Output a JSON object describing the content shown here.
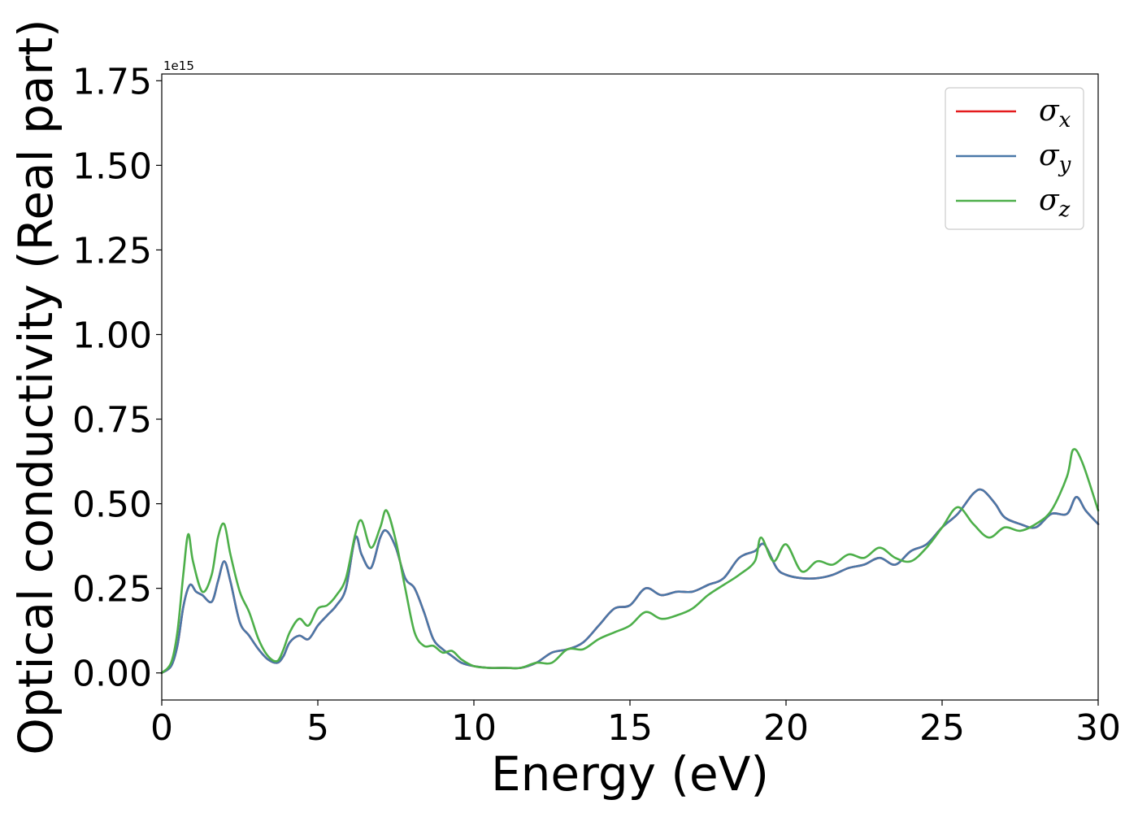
{
  "chart_data": {
    "type": "line",
    "xlabel": "Energy (eV)",
    "ylabel": "Optical conductivity (Real part)",
    "y_offset_text": "1e15",
    "xlim": [
      0,
      30
    ],
    "ylim": [
      -0.08,
      1.77
    ],
    "xticks": [
      0,
      5,
      10,
      15,
      20,
      25,
      30
    ],
    "xtick_labels": [
      "0",
      "5",
      "10",
      "15",
      "20",
      "25",
      "30"
    ],
    "yticks": [
      0.0,
      0.25,
      0.5,
      0.75,
      1.0,
      1.25,
      1.5,
      1.75
    ],
    "ytick_labels": [
      "0.00",
      "0.25",
      "0.50",
      "0.75",
      "1.00",
      "1.25",
      "1.50",
      "1.75"
    ],
    "grid": false,
    "legend_position": "top-right",
    "series": [
      {
        "name": "σx",
        "symbol": "σ",
        "subscript": "x",
        "color": "#e41a1c",
        "x": [
          0,
          0.3,
          0.5,
          0.7,
          0.9,
          1.1,
          1.3,
          1.6,
          1.8,
          2.0,
          2.2,
          2.5,
          2.8,
          3.1,
          3.4,
          3.7,
          3.9,
          4.1,
          4.4,
          4.7,
          5.0,
          5.3,
          5.6,
          5.9,
          6.2,
          6.4,
          6.7,
          7.0,
          7.2,
          7.5,
          7.8,
          8.1,
          8.4,
          8.7,
          9.0,
          9.3,
          9.6,
          10.0,
          10.5,
          11.0,
          11.5,
          12.0,
          12.5,
          13.0,
          13.5,
          14.0,
          14.5,
          15.0,
          15.5,
          16.0,
          16.5,
          17.0,
          17.5,
          18.0,
          18.5,
          19.0,
          19.3,
          19.7,
          20.0,
          20.5,
          21.0,
          21.5,
          22.0,
          22.5,
          23.0,
          23.5,
          24.0,
          24.5,
          25.0,
          25.5,
          26.0,
          26.3,
          26.7,
          27.0,
          27.5,
          28.0,
          28.5,
          29.0,
          29.3,
          29.6,
          30.0
        ],
        "y": [
          0.0,
          0.02,
          0.08,
          0.2,
          0.26,
          0.24,
          0.23,
          0.21,
          0.27,
          0.33,
          0.27,
          0.15,
          0.11,
          0.07,
          0.04,
          0.03,
          0.05,
          0.09,
          0.11,
          0.1,
          0.14,
          0.17,
          0.2,
          0.25,
          0.4,
          0.35,
          0.31,
          0.4,
          0.42,
          0.37,
          0.28,
          0.25,
          0.18,
          0.1,
          0.07,
          0.05,
          0.03,
          0.02,
          0.015,
          0.015,
          0.015,
          0.03,
          0.06,
          0.07,
          0.09,
          0.14,
          0.19,
          0.2,
          0.25,
          0.23,
          0.24,
          0.24,
          0.26,
          0.28,
          0.34,
          0.36,
          0.38,
          0.31,
          0.29,
          0.28,
          0.28,
          0.29,
          0.31,
          0.32,
          0.34,
          0.32,
          0.36,
          0.38,
          0.43,
          0.47,
          0.53,
          0.54,
          0.5,
          0.46,
          0.44,
          0.43,
          0.47,
          0.47,
          0.52,
          0.48,
          0.44
        ]
      },
      {
        "name": "σy",
        "symbol": "σ",
        "subscript": "y",
        "color": "#4a78a8",
        "x": [
          0,
          0.3,
          0.5,
          0.7,
          0.9,
          1.1,
          1.3,
          1.6,
          1.8,
          2.0,
          2.2,
          2.5,
          2.8,
          3.1,
          3.4,
          3.7,
          3.9,
          4.1,
          4.4,
          4.7,
          5.0,
          5.3,
          5.6,
          5.9,
          6.2,
          6.4,
          6.7,
          7.0,
          7.2,
          7.5,
          7.8,
          8.1,
          8.4,
          8.7,
          9.0,
          9.3,
          9.6,
          10.0,
          10.5,
          11.0,
          11.5,
          12.0,
          12.5,
          13.0,
          13.5,
          14.0,
          14.5,
          15.0,
          15.5,
          16.0,
          16.5,
          17.0,
          17.5,
          18.0,
          18.5,
          19.0,
          19.3,
          19.7,
          20.0,
          20.5,
          21.0,
          21.5,
          22.0,
          22.5,
          23.0,
          23.5,
          24.0,
          24.5,
          25.0,
          25.5,
          26.0,
          26.3,
          26.7,
          27.0,
          27.5,
          28.0,
          28.5,
          29.0,
          29.3,
          29.6,
          30.0
        ],
        "y": [
          0.0,
          0.02,
          0.08,
          0.2,
          0.26,
          0.24,
          0.23,
          0.21,
          0.27,
          0.33,
          0.27,
          0.15,
          0.11,
          0.07,
          0.04,
          0.03,
          0.05,
          0.09,
          0.11,
          0.1,
          0.14,
          0.17,
          0.2,
          0.25,
          0.4,
          0.35,
          0.31,
          0.4,
          0.42,
          0.37,
          0.28,
          0.25,
          0.18,
          0.1,
          0.07,
          0.05,
          0.03,
          0.02,
          0.015,
          0.015,
          0.015,
          0.03,
          0.06,
          0.07,
          0.09,
          0.14,
          0.19,
          0.2,
          0.25,
          0.23,
          0.24,
          0.24,
          0.26,
          0.28,
          0.34,
          0.36,
          0.38,
          0.31,
          0.29,
          0.28,
          0.28,
          0.29,
          0.31,
          0.32,
          0.34,
          0.32,
          0.36,
          0.38,
          0.43,
          0.47,
          0.53,
          0.54,
          0.5,
          0.46,
          0.44,
          0.43,
          0.47,
          0.47,
          0.52,
          0.48,
          0.44
        ]
      },
      {
        "name": "σz",
        "symbol": "σ",
        "subscript": "z",
        "color": "#4daf4a",
        "x": [
          0,
          0.3,
          0.5,
          0.7,
          0.85,
          1.0,
          1.3,
          1.6,
          1.8,
          2.0,
          2.2,
          2.5,
          2.8,
          3.1,
          3.4,
          3.7,
          3.9,
          4.1,
          4.4,
          4.7,
          5.0,
          5.3,
          5.6,
          5.9,
          6.2,
          6.4,
          6.7,
          7.0,
          7.2,
          7.5,
          7.8,
          8.1,
          8.4,
          8.7,
          9.0,
          9.3,
          9.6,
          10.0,
          10.5,
          11.0,
          11.5,
          12.0,
          12.5,
          13.0,
          13.5,
          14.0,
          14.5,
          15.0,
          15.5,
          16.0,
          16.5,
          17.0,
          17.5,
          18.0,
          18.5,
          19.0,
          19.2,
          19.6,
          20.0,
          20.5,
          21.0,
          21.5,
          22.0,
          22.5,
          23.0,
          23.5,
          24.0,
          24.5,
          25.0,
          25.5,
          26.0,
          26.5,
          27.0,
          27.5,
          28.0,
          28.5,
          29.0,
          29.2,
          29.5,
          30.0
        ],
        "y": [
          0.0,
          0.03,
          0.12,
          0.3,
          0.41,
          0.33,
          0.24,
          0.29,
          0.4,
          0.44,
          0.35,
          0.24,
          0.18,
          0.1,
          0.05,
          0.035,
          0.07,
          0.12,
          0.16,
          0.14,
          0.19,
          0.2,
          0.23,
          0.28,
          0.41,
          0.45,
          0.37,
          0.43,
          0.48,
          0.39,
          0.25,
          0.12,
          0.08,
          0.08,
          0.06,
          0.065,
          0.04,
          0.02,
          0.015,
          0.015,
          0.015,
          0.03,
          0.03,
          0.07,
          0.07,
          0.1,
          0.12,
          0.14,
          0.18,
          0.16,
          0.17,
          0.19,
          0.23,
          0.26,
          0.29,
          0.33,
          0.4,
          0.33,
          0.38,
          0.3,
          0.33,
          0.32,
          0.35,
          0.34,
          0.37,
          0.34,
          0.33,
          0.37,
          0.43,
          0.49,
          0.44,
          0.4,
          0.43,
          0.42,
          0.44,
          0.48,
          0.58,
          0.66,
          0.62,
          0.48
        ]
      }
    ]
  }
}
